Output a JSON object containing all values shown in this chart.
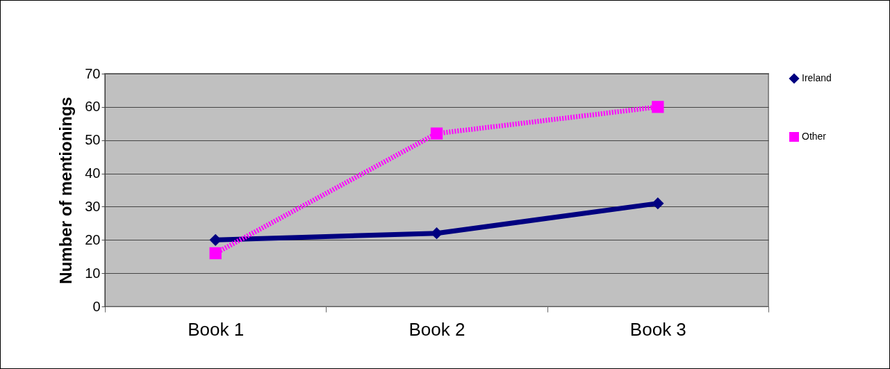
{
  "chart_data": {
    "type": "line",
    "ylabel": "Number of mentionings",
    "categories": [
      "Book 1",
      "Book 2",
      "Book 3"
    ],
    "series": [
      {
        "name": "Ireland",
        "color": "#000080",
        "values": [
          20,
          22,
          31
        ],
        "marker": "diamond",
        "line_style": "solid"
      },
      {
        "name": "Other",
        "color": "#ff00ff",
        "values": [
          16,
          52,
          60
        ],
        "marker": "square",
        "line_style": "dotted"
      }
    ],
    "ylim": [
      0,
      70
    ],
    "yticks": [
      0,
      10,
      20,
      30,
      40,
      50,
      60,
      70
    ],
    "grid": "y",
    "legend": "right"
  }
}
